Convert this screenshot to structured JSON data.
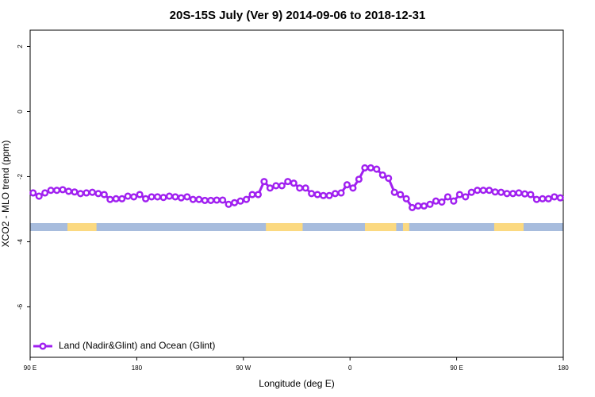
{
  "chart_data": {
    "type": "line",
    "title": "20S-15S July (Ver 9)   2014-09-06 to 2018-12-31",
    "x_label": "Longitude (deg E)",
    "y_label": "XCO2 - MLO trend (ppm)",
    "xlim": [
      90,
      540
    ],
    "xticks": [
      {
        "value": 90,
        "label": "90 E"
      },
      {
        "value": 180,
        "label": "180"
      },
      {
        "value": 270,
        "label": "90 W"
      },
      {
        "value": 360,
        "label": "0"
      },
      {
        "value": 450,
        "label": "90 E"
      },
      {
        "value": 540,
        "label": "180"
      }
    ],
    "ylim": [
      -7.55,
      2.5
    ],
    "yticks": [
      2,
      0,
      -2,
      -4,
      -6
    ],
    "legend": "bottom-left",
    "x": [
      92.5,
      97.5,
      102.5,
      107.5,
      112.5,
      117.5,
      122.5,
      127.5,
      132.5,
      137.5,
      142.5,
      147.5,
      152.5,
      157.5,
      162.5,
      167.5,
      172.5,
      177.5,
      182.5,
      187.5,
      192.5,
      197.5,
      202.5,
      207.5,
      212.5,
      217.5,
      222.5,
      227.5,
      232.5,
      237.5,
      242.5,
      247.5,
      252.5,
      257.5,
      262.5,
      267.5,
      272.5,
      277.5,
      282.5,
      287.5,
      292.5,
      297.5,
      302.5,
      307.5,
      312.5,
      317.5,
      322.5,
      327.5,
      332.5,
      337.5,
      342.5,
      347.5,
      352.5,
      357.5,
      362.5,
      367.5,
      372.5,
      377.5,
      382.5,
      387.5,
      392.5,
      397.5,
      402.5,
      407.5,
      412.5,
      417.5,
      422.5,
      427.5,
      432.5,
      437.5,
      442.5,
      447.5,
      452.5,
      457.5,
      462.5,
      467.5,
      472.5,
      477.5,
      482.5,
      487.5,
      492.5,
      497.5,
      502.5,
      507.5,
      512.5,
      517.5,
      522.5,
      527.5,
      532.5,
      537.5
    ],
    "series": [
      {
        "name": "Land (Nadir&Glint) and Ocean (Glint)",
        "color": "#a020f0",
        "values": [
          -2.5,
          -2.6,
          -2.5,
          -2.42,
          -2.42,
          -2.4,
          -2.45,
          -2.47,
          -2.52,
          -2.5,
          -2.48,
          -2.52,
          -2.55,
          -2.7,
          -2.68,
          -2.68,
          -2.6,
          -2.62,
          -2.55,
          -2.68,
          -2.62,
          -2.62,
          -2.64,
          -2.6,
          -2.62,
          -2.65,
          -2.62,
          -2.7,
          -2.7,
          -2.73,
          -2.73,
          -2.72,
          -2.72,
          -2.85,
          -2.8,
          -2.75,
          -2.7,
          -2.55,
          -2.55,
          -2.15,
          -2.35,
          -2.28,
          -2.28,
          -2.15,
          -2.2,
          -2.35,
          -2.35,
          -2.52,
          -2.55,
          -2.58,
          -2.58,
          -2.52,
          -2.5,
          -2.25,
          -2.35,
          -2.08,
          -1.73,
          -1.73,
          -1.77,
          -1.95,
          -2.05,
          -2.48,
          -2.55,
          -2.68,
          -2.95,
          -2.9,
          -2.9,
          -2.85,
          -2.75,
          -2.78,
          -2.62,
          -2.75,
          -2.55,
          -2.62,
          -2.48,
          -2.42,
          -2.42,
          -2.42,
          -2.47,
          -2.48,
          -2.52,
          -2.52,
          -2.5,
          -2.53,
          -2.55,
          -2.7,
          -2.68,
          -2.68,
          -2.62,
          -2.65
        ]
      }
    ],
    "band": {
      "value": -3.55,
      "ocean_color": "#a7bcdd",
      "land_color": "#fbd980",
      "land_ranges": [
        [
          121.5,
          146
        ],
        [
          289,
          320
        ],
        [
          372.6,
          399
        ],
        [
          404.7,
          410
        ],
        [
          481.7,
          506.5
        ]
      ]
    }
  }
}
